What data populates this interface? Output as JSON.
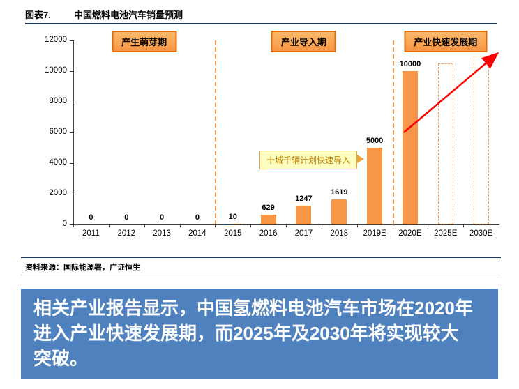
{
  "header": {
    "label": "图表7.",
    "title": "中国燃料电池汽车销量预测"
  },
  "chart_data": {
    "type": "bar",
    "title": "中国燃料电池汽车销量预测",
    "categories": [
      "2011",
      "2012",
      "2013",
      "2014",
      "2015",
      "2016",
      "2017",
      "2018",
      "2019E",
      "2020E",
      "2025E",
      "2030E"
    ],
    "values": [
      0,
      0,
      0,
      0,
      10,
      629,
      1247,
      1619,
      5000,
      10000,
      10500,
      11000
    ],
    "bar_labels": [
      "0",
      "0",
      "0",
      "0",
      "10",
      "629",
      "1247",
      "1619",
      "5000",
      "10000",
      "",
      ""
    ],
    "bar_styles": [
      "solid",
      "solid",
      "solid",
      "solid",
      "solid",
      "solid",
      "solid",
      "solid",
      "solid",
      "solid",
      "dashed",
      "dashed"
    ],
    "ylim": [
      0,
      12000
    ],
    "ytick_step": 2000,
    "bar_color": "#F79646",
    "grid": "off",
    "phases": [
      {
        "label": "产生萌芽期",
        "start_index": 0,
        "end_index": 3
      },
      {
        "label": "产业导入期",
        "start_index": 4,
        "end_index": 8
      },
      {
        "label": "产业快速发展期",
        "start_index": 9,
        "end_index": 11
      }
    ],
    "callout": {
      "text": "十城千辆计划快速导入",
      "target_category": "2019E"
    },
    "trend_arrow": {
      "color": "#FF0000",
      "from_category": "2020E",
      "to_category": "2030E"
    }
  },
  "source": {
    "prefix": "资料来源：",
    "text": "国际能源署，广证恒生"
  },
  "banner": {
    "text": "相关产业报告显示，中国氢燃料电池汽车市场在2020年进入产业快速发展期，而2025年及2030年将实现较大突破。",
    "lines": [
      "相关产业报告显示，中国氢燃料电池汽车市场在2020年",
      "进入产业快速发展期，而2025年及2030年将实现较大",
      "突破。"
    ]
  }
}
